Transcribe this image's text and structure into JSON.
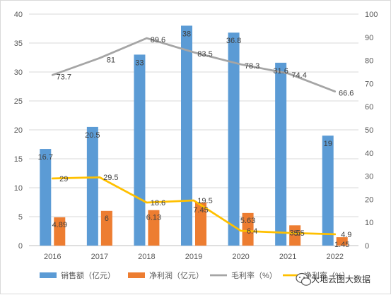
{
  "chart_data": {
    "type": "bar",
    "categories": [
      "2016",
      "2017",
      "2018",
      "2019",
      "2020",
      "2021",
      "2022"
    ],
    "y_left": {
      "ticks": [
        "0",
        "5",
        "10",
        "15",
        "20",
        "25",
        "30",
        "35",
        "40"
      ],
      "ylim": [
        0,
        40
      ]
    },
    "y_right": {
      "ticks": [
        "0",
        "10",
        "20",
        "30",
        "40",
        "50",
        "60",
        "70",
        "80",
        "90",
        "100"
      ],
      "ylim": [
        0,
        100
      ]
    },
    "grid": true,
    "legend_position": "bottom",
    "series": [
      {
        "name": "销售额（亿元）",
        "type": "bar",
        "axis": "left",
        "color": "#5b9bd5",
        "values": [
          16.7,
          20.5,
          33,
          38,
          36.8,
          31.6,
          19
        ],
        "labels": [
          "16.7",
          "20.5",
          "33",
          "38",
          "36.8",
          "31.6",
          "19"
        ]
      },
      {
        "name": "净利润（亿元）",
        "type": "bar",
        "axis": "left",
        "color": "#ed7d31",
        "values": [
          4.89,
          6,
          6.13,
          7.45,
          5.63,
          3.5,
          1.45
        ],
        "labels": [
          "4.89",
          "6",
          "6.13",
          "7.45",
          "5.63",
          "3.5",
          "1.45"
        ]
      },
      {
        "name": "毛利率（%）",
        "type": "line",
        "axis": "right",
        "color": "#a5a5a5",
        "values": [
          73.7,
          81,
          89.6,
          83.5,
          78.3,
          74.4,
          66.6
        ],
        "labels": [
          "73.7",
          "81",
          "89.6",
          "83.5",
          "78.3",
          "74.4",
          "66.6"
        ]
      },
      {
        "name": "净利率（%）",
        "type": "line",
        "axis": "right",
        "color": "#ffc000",
        "values": [
          29,
          29.5,
          18.6,
          19.5,
          6.4,
          5.5,
          4.9
        ],
        "labels": [
          "29",
          "29.5",
          "18.6",
          "19.5",
          "6.4",
          "5.5",
          "4.9"
        ]
      }
    ]
  },
  "watermark": {
    "text": "大地云图大数据",
    "icon": "wechat-icon"
  }
}
